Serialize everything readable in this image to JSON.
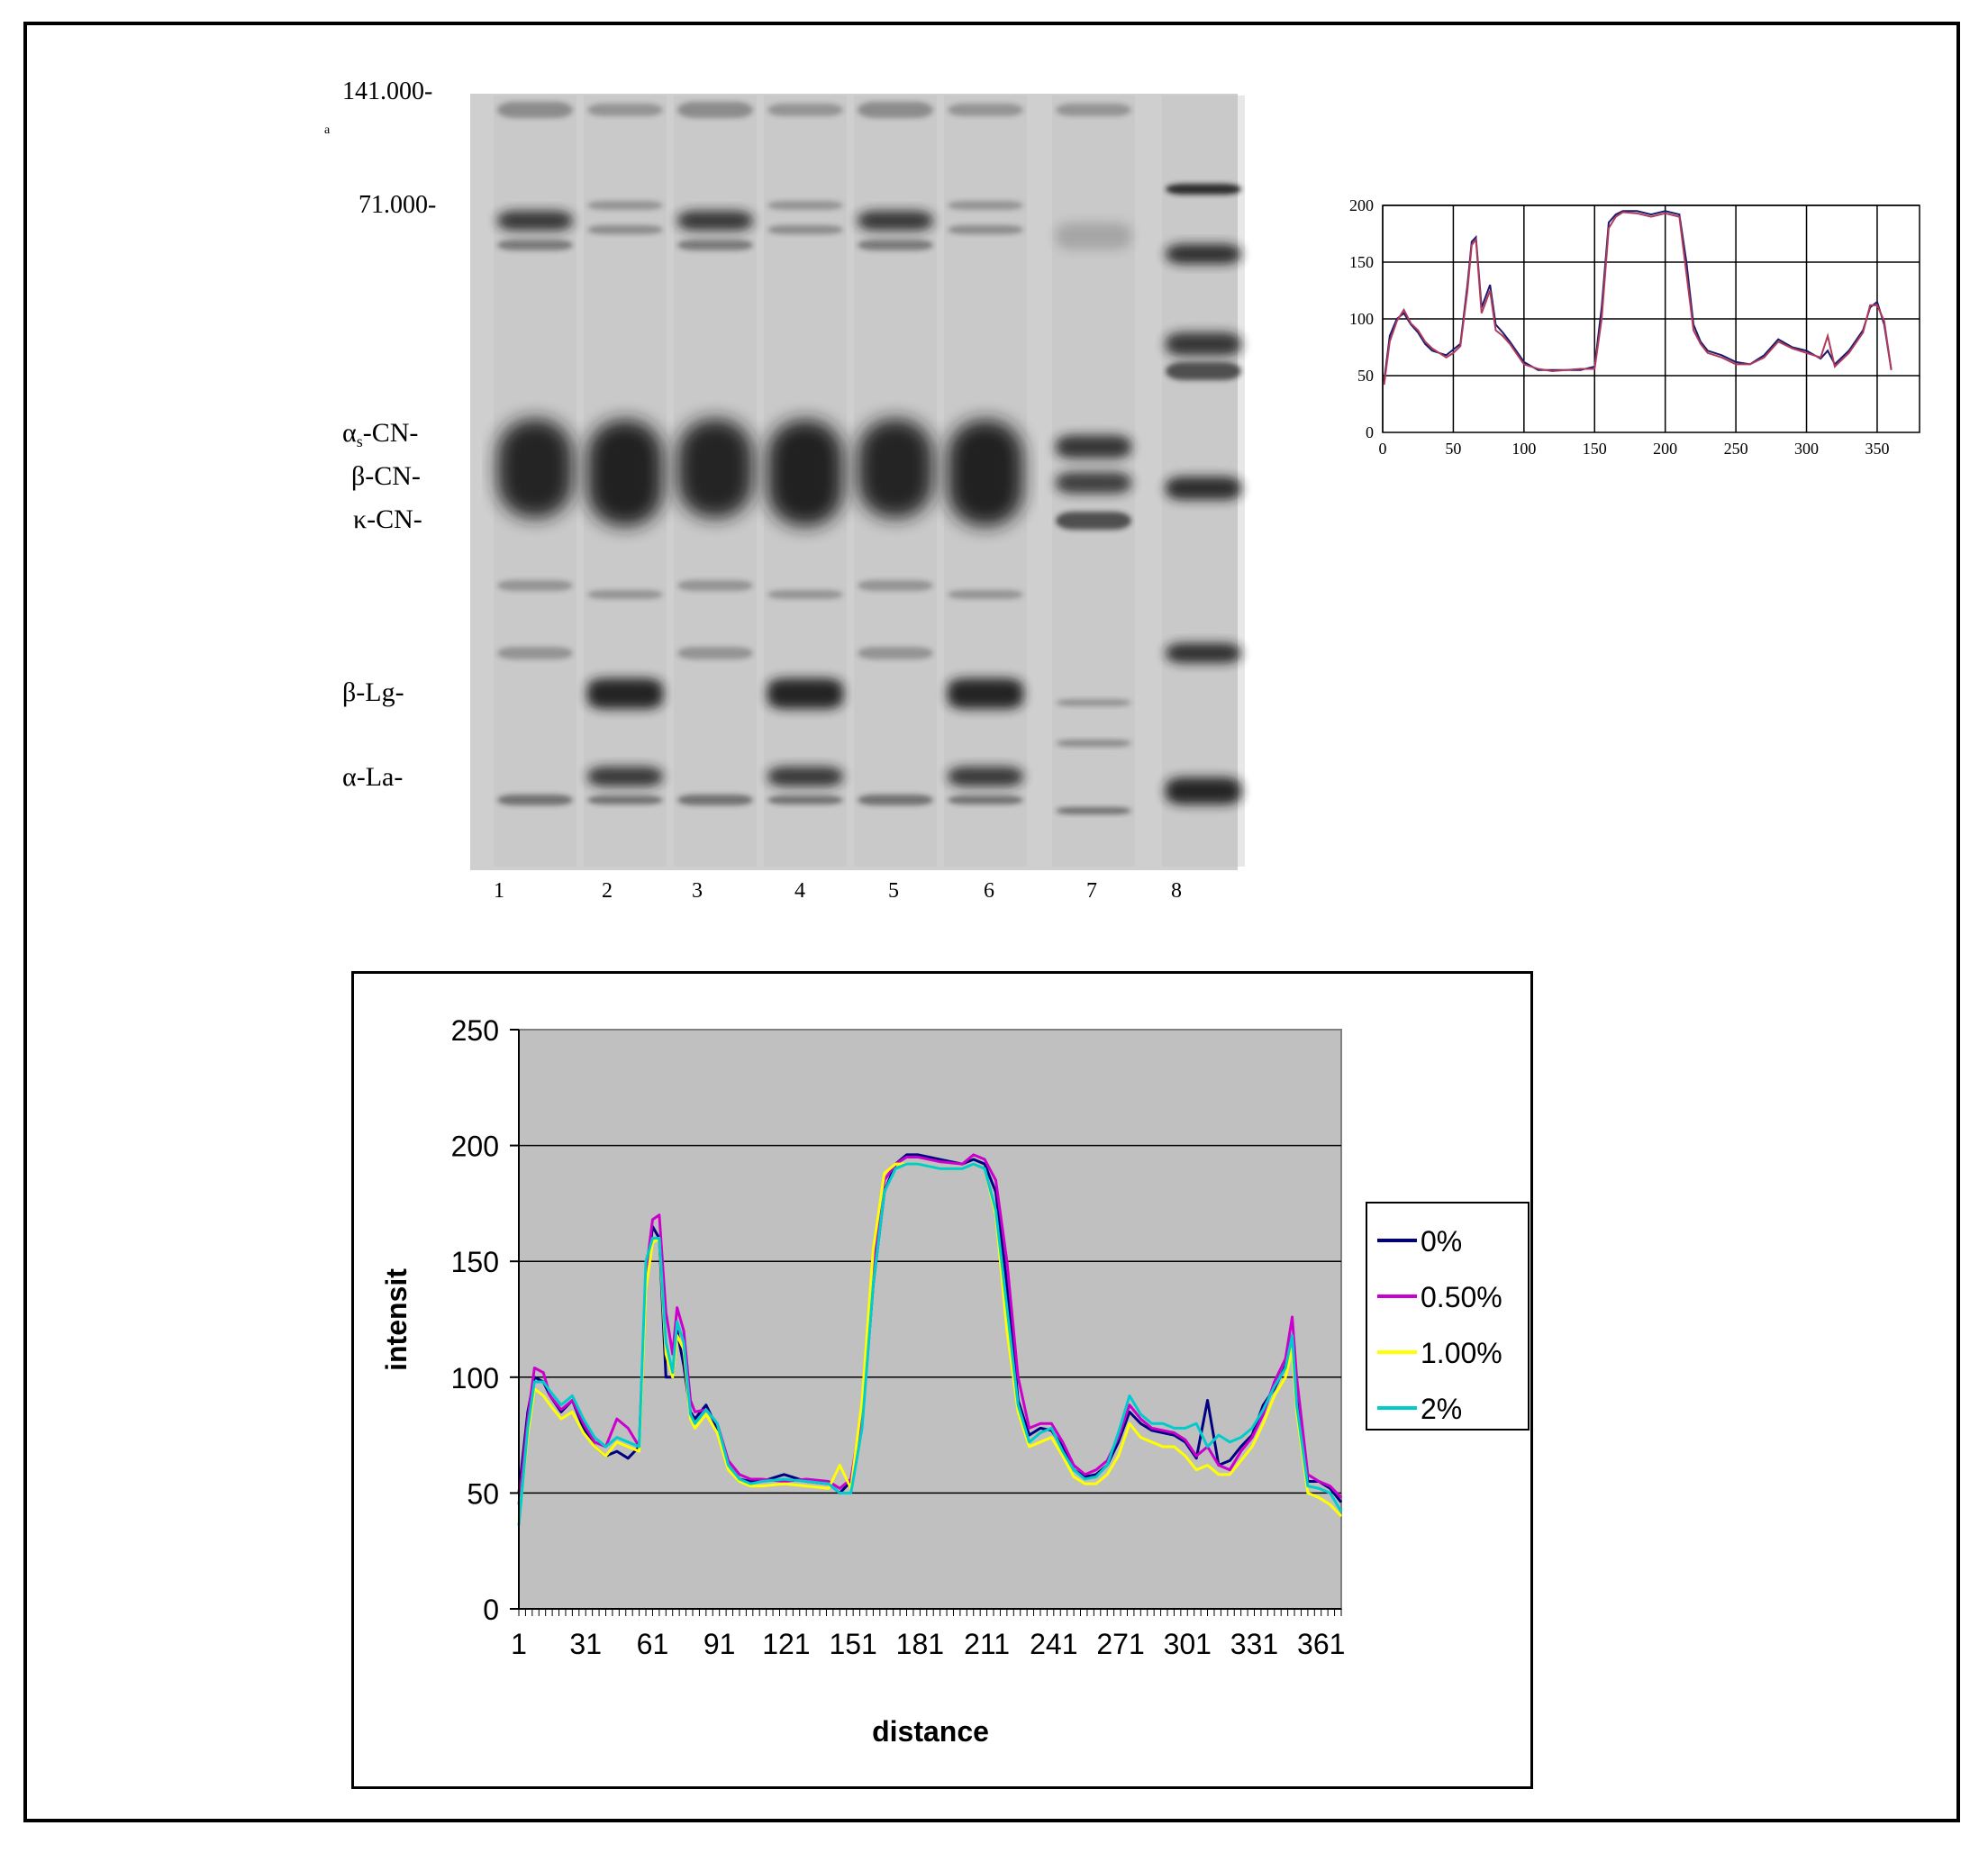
{
  "gel": {
    "marker_labels": [
      "141.000-",
      "71.000-"
    ],
    "protein_labels": [
      "αs-CN-",
      "β-CN-",
      "κ-CN-",
      "β-Lg-",
      "α-La-"
    ],
    "panel_letter": "a",
    "lane_numbers": [
      "1",
      "2",
      "3",
      "4",
      "5",
      "6",
      "7",
      "8"
    ]
  },
  "top_chart_data": {
    "type": "line",
    "title": "-",
    "xlim": [
      0,
      380
    ],
    "ylim": [
      0,
      200
    ],
    "x_ticks": [
      "0",
      "50",
      "100",
      "150",
      "200",
      "250",
      "300",
      "350"
    ],
    "y_ticks": [
      "0",
      "50",
      "100",
      "150",
      "200"
    ],
    "grid": true,
    "series_colors": [
      "#1a1a6e",
      "#b03a5a"
    ],
    "x": [
      1,
      5,
      10,
      15,
      20,
      25,
      30,
      35,
      40,
      45,
      50,
      55,
      60,
      63,
      66,
      70,
      73,
      76,
      80,
      85,
      90,
      100,
      110,
      120,
      130,
      140,
      150,
      155,
      160,
      165,
      170,
      180,
      190,
      200,
      210,
      215,
      220,
      225,
      230,
      240,
      250,
      260,
      270,
      280,
      290,
      300,
      310,
      315,
      320,
      330,
      340,
      345,
      350,
      355,
      360
    ],
    "values_a": [
      45,
      85,
      100,
      105,
      95,
      88,
      78,
      72,
      70,
      68,
      73,
      78,
      130,
      168,
      172,
      110,
      120,
      130,
      95,
      88,
      80,
      62,
      55,
      55,
      55,
      55,
      58,
      110,
      185,
      192,
      195,
      195,
      192,
      195,
      192,
      150,
      95,
      80,
      72,
      68,
      62,
      60,
      68,
      82,
      75,
      72,
      65,
      72,
      60,
      72,
      90,
      110,
      115,
      95,
      55
    ],
    "values_b": [
      42,
      80,
      98,
      108,
      96,
      90,
      80,
      74,
      70,
      66,
      70,
      76,
      125,
      165,
      170,
      105,
      115,
      125,
      90,
      85,
      78,
      60,
      56,
      54,
      55,
      56,
      56,
      100,
      180,
      190,
      194,
      193,
      190,
      193,
      190,
      140,
      90,
      78,
      70,
      66,
      60,
      60,
      66,
      80,
      74,
      70,
      66,
      85,
      58,
      70,
      88,
      112,
      112,
      98,
      55
    ]
  },
  "chart_data": {
    "type": "line",
    "xlabel": "distance",
    "ylabel": "intensit",
    "ylim": [
      0,
      250
    ],
    "xlim": [
      1,
      370
    ],
    "x_ticks": [
      "1",
      "31",
      "61",
      "91",
      "121",
      "151",
      "181",
      "211",
      "241",
      "271",
      "301",
      "331",
      "361"
    ],
    "y_ticks": [
      "0",
      "50",
      "100",
      "150",
      "200",
      "250"
    ],
    "grid": true,
    "legend_position": "right",
    "background": "#c0c0c0",
    "x": [
      1,
      5,
      8,
      12,
      15,
      20,
      25,
      30,
      35,
      40,
      45,
      50,
      55,
      58,
      61,
      64,
      67,
      70,
      72,
      75,
      78,
      80,
      85,
      90,
      95,
      100,
      105,
      110,
      120,
      130,
      140,
      145,
      150,
      155,
      160,
      165,
      170,
      175,
      180,
      190,
      200,
      205,
      210,
      215,
      220,
      225,
      230,
      235,
      240,
      245,
      250,
      255,
      260,
      265,
      270,
      275,
      280,
      285,
      290,
      295,
      300,
      305,
      310,
      315,
      320,
      325,
      330,
      335,
      340,
      345,
      348,
      350,
      355,
      360,
      365,
      370
    ],
    "series": [
      {
        "name": "0%",
        "color": "#000080",
        "values": [
          50,
          85,
          100,
          98,
          92,
          85,
          90,
          78,
          70,
          66,
          68,
          65,
          70,
          140,
          165,
          160,
          100,
          100,
          120,
          105,
          85,
          82,
          88,
          78,
          62,
          56,
          55,
          55,
          58,
          55,
          54,
          50,
          55,
          80,
          140,
          180,
          192,
          196,
          196,
          194,
          192,
          194,
          192,
          180,
          140,
          90,
          75,
          78,
          77,
          70,
          60,
          57,
          58,
          62,
          72,
          85,
          80,
          77,
          76,
          75,
          72,
          65,
          90,
          62,
          64,
          70,
          75,
          88,
          95,
          105,
          118,
          90,
          55,
          55,
          52,
          46
        ]
      },
      {
        "name": "0.50%",
        "color": "#cc00cc",
        "values": [
          45,
          82,
          104,
          102,
          92,
          86,
          90,
          80,
          72,
          70,
          82,
          78,
          70,
          145,
          168,
          170,
          128,
          110,
          130,
          120,
          90,
          85,
          86,
          80,
          64,
          58,
          56,
          56,
          55,
          56,
          55,
          52,
          56,
          85,
          150,
          185,
          192,
          195,
          195,
          193,
          192,
          196,
          194,
          185,
          150,
          100,
          78,
          80,
          80,
          72,
          62,
          58,
          60,
          64,
          74,
          88,
          82,
          78,
          77,
          76,
          73,
          66,
          70,
          62,
          60,
          68,
          74,
          84,
          98,
          108,
          126,
          100,
          58,
          55,
          53,
          48
        ]
      },
      {
        "name": "1.00%",
        "color": "#ffff00",
        "values": [
          38,
          75,
          95,
          92,
          88,
          82,
          85,
          76,
          70,
          66,
          72,
          70,
          68,
          138,
          158,
          160,
          110,
          100,
          118,
          112,
          82,
          78,
          84,
          76,
          60,
          55,
          53,
          53,
          54,
          53,
          52,
          62,
          52,
          90,
          155,
          188,
          192,
          192,
          192,
          190,
          190,
          192,
          190,
          170,
          120,
          85,
          70,
          72,
          74,
          66,
          57,
          54,
          54,
          58,
          66,
          80,
          74,
          72,
          70,
          70,
          66,
          60,
          62,
          58,
          58,
          64,
          70,
          80,
          92,
          100,
          112,
          85,
          50,
          48,
          45,
          40
        ]
      },
      {
        "name": "2%",
        "color": "#00cccc",
        "values": [
          36,
          78,
          98,
          98,
          94,
          88,
          92,
          82,
          74,
          70,
          74,
          72,
          70,
          150,
          160,
          160,
          115,
          102,
          124,
          115,
          84,
          80,
          86,
          80,
          62,
          56,
          54,
          55,
          56,
          55,
          54,
          50,
          50,
          78,
          140,
          180,
          190,
          192,
          192,
          190,
          190,
          192,
          190,
          172,
          130,
          88,
          72,
          76,
          78,
          68,
          60,
          56,
          57,
          62,
          76,
          92,
          84,
          80,
          80,
          78,
          78,
          80,
          70,
          75,
          72,
          74,
          78,
          86,
          96,
          104,
          118,
          88,
          53,
          52,
          50,
          42
        ]
      }
    ]
  }
}
